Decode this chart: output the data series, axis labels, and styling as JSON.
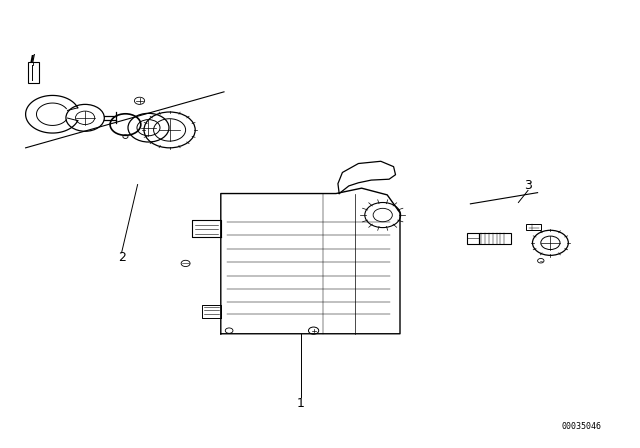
{
  "background_color": "#ffffff",
  "line_color": "#000000",
  "part_number": "00035046",
  "label_1": [
    0.47,
    0.1
  ],
  "label_2": [
    0.19,
    0.425
  ],
  "label_3": [
    0.825,
    0.585
  ],
  "label_I": [
    0.05,
    0.865
  ]
}
